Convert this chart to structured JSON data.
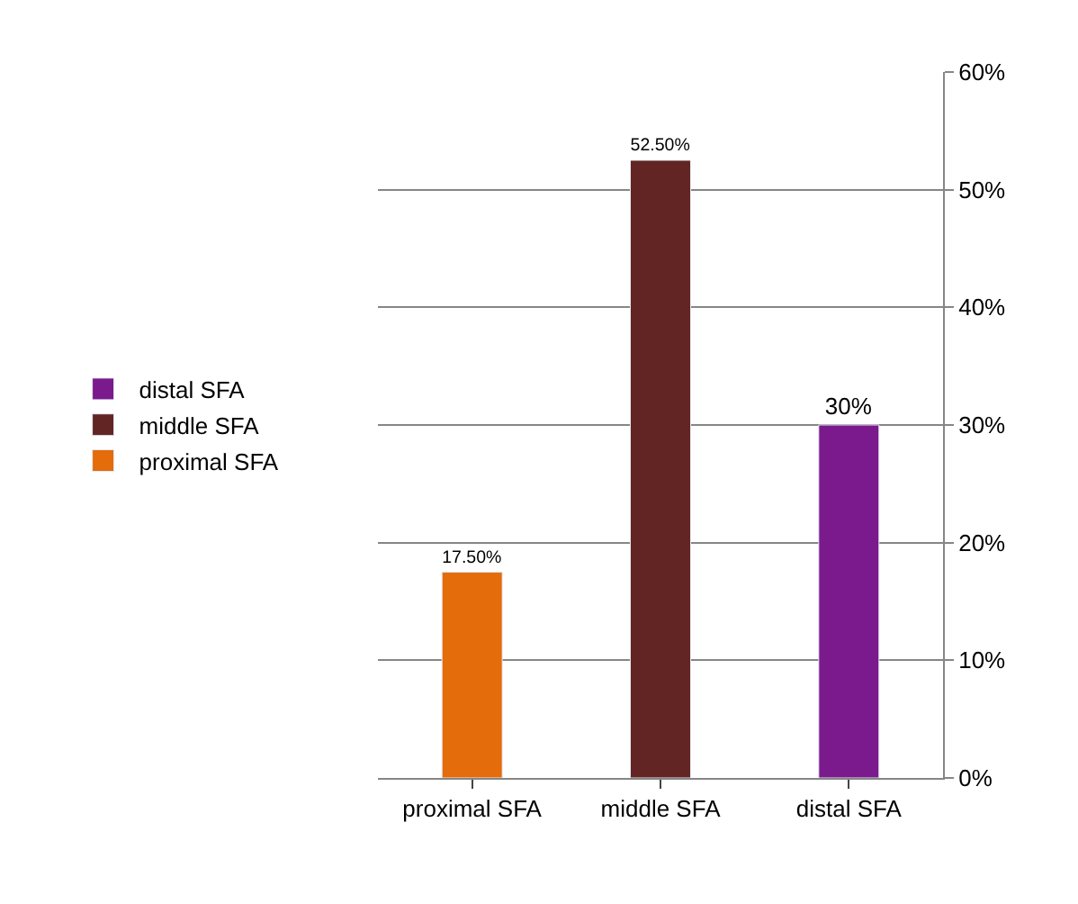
{
  "chart_data": {
    "type": "bar",
    "categories": [
      "proximal SFA",
      "middle SFA",
      "distal SFA"
    ],
    "series": [
      {
        "name": "proximal SFA",
        "color": "#e46c0a",
        "values": [
          17.5,
          null,
          null
        ],
        "value_labels": [
          "17.50%",
          null,
          null
        ]
      },
      {
        "name": "middle SFA",
        "color": "#632523",
        "values": [
          null,
          52.5,
          null
        ],
        "value_labels": [
          null,
          "52.50%",
          null
        ]
      },
      {
        "name": "distal SFA",
        "color": "#7a1a8c",
        "values": [
          null,
          null,
          30
        ],
        "value_labels": [
          null,
          null,
          "30%"
        ]
      }
    ],
    "ylim": [
      0,
      60
    ],
    "yticks": [
      {
        "value": 0,
        "label": "0%"
      },
      {
        "value": 10,
        "label": "10%"
      },
      {
        "value": 20,
        "label": "20%"
      },
      {
        "value": 30,
        "label": "30%"
      },
      {
        "value": 40,
        "label": "40%"
      },
      {
        "value": 50,
        "label": "50%"
      },
      {
        "value": 60,
        "label": "60%"
      }
    ],
    "grid": "y",
    "legend": "left"
  }
}
